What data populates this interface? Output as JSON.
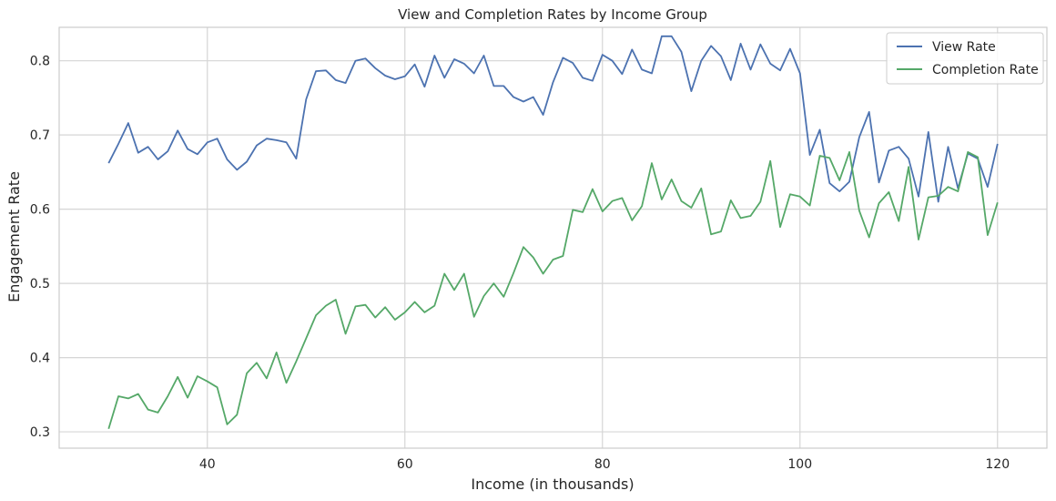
{
  "chart_data": {
    "type": "line",
    "title": "View and Completion Rates by Income Group",
    "xlabel": "Income (in thousands)",
    "ylabel": "Engagement Rate",
    "xlim": [
      25,
      125
    ],
    "ylim": [
      0.278,
      0.845
    ],
    "xticks": [
      40,
      60,
      80,
      100,
      120
    ],
    "yticks": [
      0.3,
      0.4,
      0.5,
      0.6,
      0.7,
      0.8
    ],
    "grid": true,
    "legend_position": "top-right",
    "x": [
      30,
      31,
      32,
      33,
      34,
      35,
      36,
      37,
      38,
      39,
      40,
      41,
      42,
      43,
      44,
      45,
      46,
      47,
      48,
      49,
      50,
      51,
      52,
      53,
      54,
      55,
      56,
      57,
      58,
      59,
      60,
      61,
      62,
      63,
      64,
      65,
      66,
      67,
      68,
      69,
      70,
      71,
      72,
      73,
      74,
      75,
      76,
      77,
      78,
      79,
      80,
      81,
      82,
      83,
      84,
      85,
      86,
      87,
      88,
      89,
      90,
      91,
      92,
      93,
      94,
      95,
      96,
      97,
      98,
      99,
      100,
      101,
      102,
      103,
      104,
      105,
      106,
      107,
      108,
      109,
      110,
      111,
      112,
      113,
      114,
      115,
      116,
      117,
      118,
      119,
      120
    ],
    "series": [
      {
        "name": "View Rate",
        "color": "#4c72b0",
        "values": [
          0.662,
          0.688,
          0.716,
          0.676,
          0.684,
          0.667,
          0.678,
          0.706,
          0.681,
          0.674,
          0.69,
          0.695,
          0.667,
          0.653,
          0.664,
          0.686,
          0.695,
          0.693,
          0.69,
          0.668,
          0.748,
          0.786,
          0.787,
          0.774,
          0.77,
          0.8,
          0.803,
          0.79,
          0.78,
          0.775,
          0.779,
          0.795,
          0.765,
          0.807,
          0.777,
          0.802,
          0.796,
          0.783,
          0.807,
          0.766,
          0.766,
          0.751,
          0.745,
          0.751,
          0.727,
          0.771,
          0.804,
          0.797,
          0.777,
          0.773,
          0.808,
          0.8,
          0.782,
          0.815,
          0.788,
          0.783,
          0.833,
          0.833,
          0.812,
          0.759,
          0.8,
          0.82,
          0.806,
          0.774,
          0.823,
          0.788,
          0.822,
          0.796,
          0.787,
          0.816,
          0.783,
          0.673,
          0.707,
          0.635,
          0.624,
          0.637,
          0.697,
          0.731,
          0.636,
          0.679,
          0.684,
          0.668,
          0.617,
          0.704,
          0.61,
          0.684,
          0.628,
          0.675,
          0.668,
          0.63,
          0.688
        ]
      },
      {
        "name": "Completion Rate",
        "color": "#55a868",
        "values": [
          0.304,
          0.348,
          0.345,
          0.351,
          0.33,
          0.326,
          0.348,
          0.374,
          0.346,
          0.375,
          0.368,
          0.36,
          0.31,
          0.323,
          0.379,
          0.393,
          0.372,
          0.407,
          0.366,
          0.395,
          0.426,
          0.457,
          0.47,
          0.478,
          0.432,
          0.469,
          0.471,
          0.454,
          0.468,
          0.451,
          0.461,
          0.475,
          0.461,
          0.47,
          0.513,
          0.491,
          0.513,
          0.455,
          0.483,
          0.5,
          0.482,
          0.514,
          0.549,
          0.535,
          0.513,
          0.532,
          0.537,
          0.599,
          0.596,
          0.627,
          0.597,
          0.611,
          0.615,
          0.585,
          0.604,
          0.662,
          0.613,
          0.64,
          0.611,
          0.602,
          0.628,
          0.566,
          0.57,
          0.612,
          0.588,
          0.591,
          0.61,
          0.665,
          0.576,
          0.62,
          0.617,
          0.605,
          0.672,
          0.669,
          0.639,
          0.677,
          0.598,
          0.562,
          0.608,
          0.623,
          0.584,
          0.657,
          0.559,
          0.616,
          0.618,
          0.63,
          0.624,
          0.677,
          0.67,
          0.565,
          0.609
        ]
      }
    ]
  }
}
